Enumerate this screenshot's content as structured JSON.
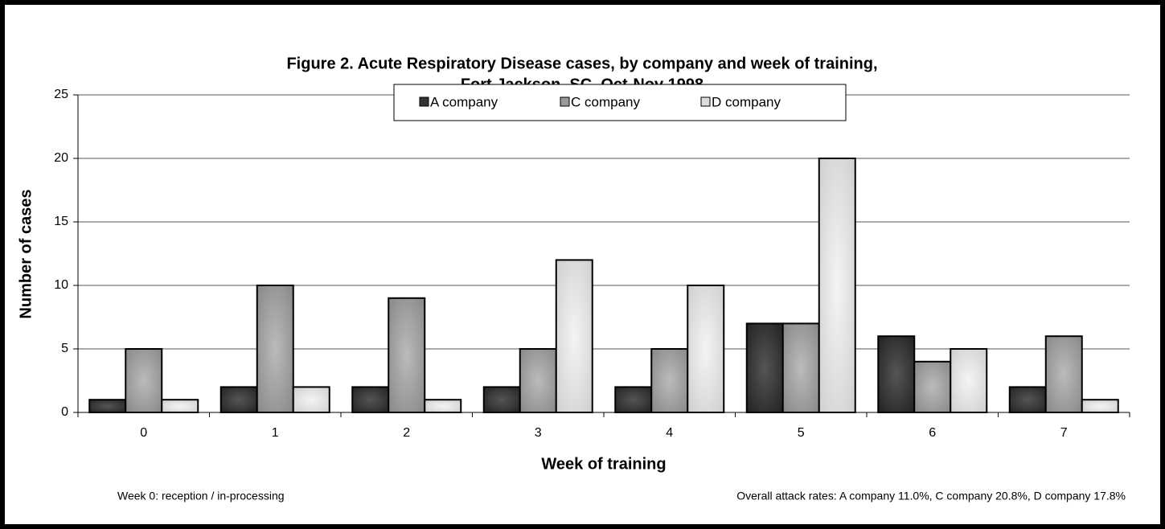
{
  "chart_data": {
    "type": "bar",
    "title": "Figure 2.  Acute Respiratory Disease cases, by company and week of training,",
    "subtitle": "Fort Jackson, SC, Oct-Nov 1998",
    "x_label": "Week of training",
    "y_label": "Number of cases",
    "categories": [
      "0",
      "1",
      "2",
      "3",
      "4",
      "5",
      "6",
      "7"
    ],
    "series": [
      {
        "name": "A company",
        "color": "#333333",
        "values": [
          1,
          2,
          2,
          2,
          2,
          7,
          6,
          2
        ]
      },
      {
        "name": "C company",
        "color": "#999999",
        "values": [
          5,
          10,
          9,
          5,
          5,
          7,
          4,
          6
        ]
      },
      {
        "name": "D company",
        "color": "#dddddd",
        "values": [
          1,
          2,
          1,
          12,
          10,
          20,
          5,
          1
        ]
      }
    ],
    "ylim": [
      0,
      25
    ],
    "yticks": [
      0,
      5,
      10,
      15,
      20,
      25
    ],
    "grid": true,
    "legend": "top",
    "notes": [
      "Week 0: reception / in-processing",
      "Overall attack rates:  A company 11.0%, C company 20.8%, D company 17.8%"
    ]
  }
}
